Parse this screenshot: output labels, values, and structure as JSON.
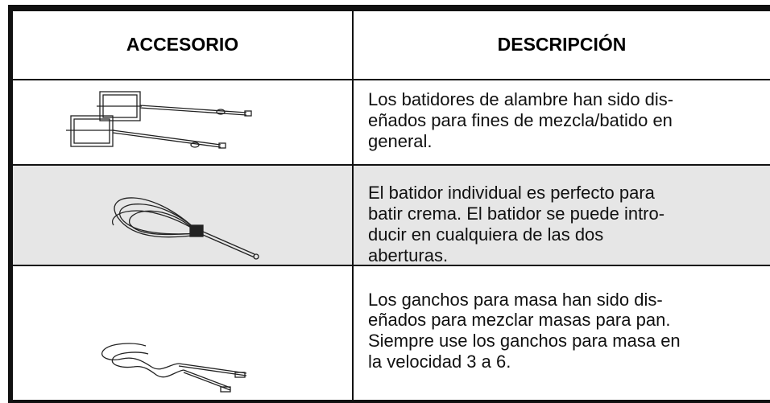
{
  "table": {
    "headers": [
      "ACCESORIO",
      "DESCRIPCIÓN"
    ],
    "rows": [
      {
        "description": [
          "Los batidores de alambre han sido dis-",
          "eñados para fines de mezcla/batido en",
          "general."
        ]
      },
      {
        "description": [
          "El batidor individual es perfecto para",
          "batir crema. El batidor se puede intro-",
          "ducir en cualquiera de las dos",
          "aberturas."
        ]
      },
      {
        "description": [
          "Los ganchos para masa han sido dis-",
          "eñados para mezclar masas para pan.",
          "Siempre use los ganchos para masa en",
          "la velocidad 3 a 6."
        ]
      }
    ]
  }
}
